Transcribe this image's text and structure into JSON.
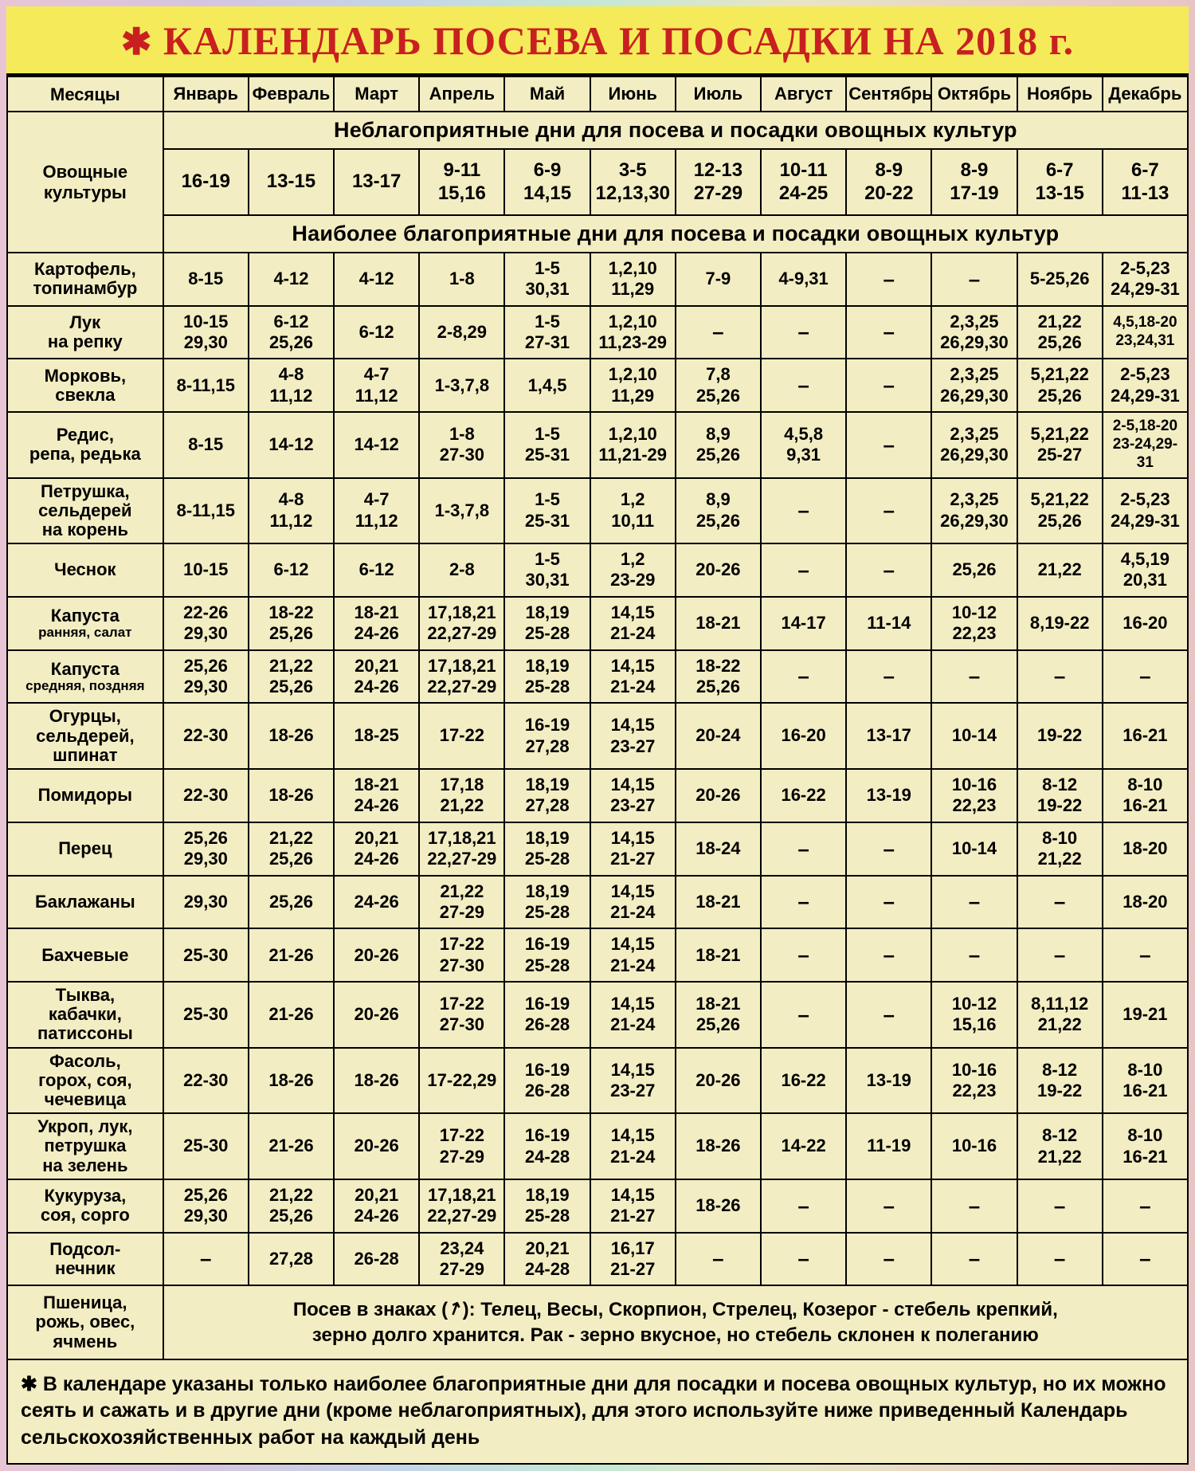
{
  "title": "КАЛЕНДАРЬ ПОСЕВА И ПОСАДКИ НА 2018 г.",
  "asterisk": "✱",
  "header_months_label": "Месяцы",
  "header_crops_label": "Овощные культуры",
  "months": [
    "Январь",
    "Февраль",
    "Март",
    "Апрель",
    "Май",
    "Июнь",
    "Июль",
    "Август",
    "Сентябрь",
    "Октябрь",
    "Ноябрь",
    "Декабрь"
  ],
  "section_unfavorable": "Неблагоприятные дни для посева и посадки овощных культур",
  "section_favorable": "Наиболее благоприятные дни для посева и посадки овощных культур",
  "unfavorable": [
    "16-19",
    "13-15",
    "13-17",
    "9-11\n15,16",
    "6-9\n14,15",
    "3-5\n12,13,30",
    "12-13\n27-29",
    "10-11\n24-25",
    "8-9\n20-22",
    "8-9\n17-19",
    "6-7\n13-15",
    "6-7\n11-13"
  ],
  "crops": [
    {
      "label": "Картофель,\nтопинамбур",
      "vals": [
        "8-15",
        "4-12",
        "4-12",
        "1-8",
        "1-5\n30,31",
        "1,2,10\n11,29",
        "7-9",
        "4-9,31",
        "–",
        "–",
        "5-25,26",
        "2-5,23\n24,29-31"
      ]
    },
    {
      "label": "Лук\nна репку",
      "vals": [
        "10-15\n29,30",
        "6-12\n25,26",
        "6-12",
        "2-8,29",
        "1-5\n27-31",
        "1,2,10\n11,23-29",
        "–",
        "–",
        "–",
        "2,3,25\n26,29,30",
        "21,22\n25,26",
        "4,5,18-20\n23,24,31"
      ]
    },
    {
      "label": "Морковь,\nсвекла",
      "vals": [
        "8-11,15",
        "4-8\n11,12",
        "4-7\n11,12",
        "1-3,7,8",
        "1,4,5",
        "1,2,10\n11,29",
        "7,8\n25,26",
        "–",
        "–",
        "2,3,25\n26,29,30",
        "5,21,22\n25,26",
        "2-5,23\n24,29-31"
      ]
    },
    {
      "label": "Редис,\nрепа, редька",
      "vals": [
        "8-15",
        "14-12",
        "14-12",
        "1-8\n27-30",
        "1-5\n25-31",
        "1,2,10\n11,21-29",
        "8,9\n25,26",
        "4,5,8\n9,31",
        "–",
        "2,3,25\n26,29,30",
        "5,21,22\n25-27",
        "2-5,18-20\n23-24,29-31"
      ]
    },
    {
      "label": "Петрушка,\nсельдерей\nна корень",
      "vals": [
        "8-11,15",
        "4-8\n11,12",
        "4-7\n11,12",
        "1-3,7,8",
        "1-5\n25-31",
        "1,2\n10,11",
        "8,9\n25,26",
        "–",
        "–",
        "2,3,25\n26,29,30",
        "5,21,22\n25,26",
        "2-5,23\n24,29-31"
      ]
    },
    {
      "label": "Чеснок",
      "vals": [
        "10-15",
        "6-12",
        "6-12",
        "2-8",
        "1-5\n30,31",
        "1,2\n23-29",
        "20-26",
        "–",
        "–",
        "25,26",
        "21,22",
        "4,5,19\n20,31"
      ]
    },
    {
      "label": "Капуста",
      "sub": "ранняя, салат",
      "vals": [
        "22-26\n29,30",
        "18-22\n25,26",
        "18-21\n24-26",
        "17,18,21\n22,27-29",
        "18,19\n25-28",
        "14,15\n21-24",
        "18-21",
        "14-17",
        "11-14",
        "10-12\n22,23",
        "8,19-22",
        "16-20"
      ]
    },
    {
      "label": "Капуста",
      "sub": "средняя, поздняя",
      "vals": [
        "25,26\n29,30",
        "21,22\n25,26",
        "20,21\n24-26",
        "17,18,21\n22,27-29",
        "18,19\n25-28",
        "14,15\n21-24",
        "18-22\n25,26",
        "–",
        "–",
        "–",
        "–",
        "–"
      ]
    },
    {
      "label": "Огурцы,\nсельдерей,\nшпинат",
      "vals": [
        "22-30",
        "18-26",
        "18-25",
        "17-22",
        "16-19\n27,28",
        "14,15\n23-27",
        "20-24",
        "16-20",
        "13-17",
        "10-14",
        "19-22",
        "16-21"
      ]
    },
    {
      "label": "Помидоры",
      "vals": [
        "22-30",
        "18-26",
        "18-21\n24-26",
        "17,18\n21,22",
        "18,19\n27,28",
        "14,15\n23-27",
        "20-26",
        "16-22",
        "13-19",
        "10-16\n22,23",
        "8-12\n19-22",
        "8-10\n16-21"
      ]
    },
    {
      "label": "Перец",
      "vals": [
        "25,26\n29,30",
        "21,22\n25,26",
        "20,21\n24-26",
        "17,18,21\n22,27-29",
        "18,19\n25-28",
        "14,15\n21-27",
        "18-24",
        "–",
        "–",
        "10-14",
        "8-10\n21,22",
        "18-20"
      ]
    },
    {
      "label": "Баклажаны",
      "vals": [
        "29,30",
        "25,26",
        "24-26",
        "21,22\n27-29",
        "18,19\n25-28",
        "14,15\n21-24",
        "18-21",
        "–",
        "–",
        "–",
        "–",
        "18-20"
      ]
    },
    {
      "label": "Бахчевые",
      "vals": [
        "25-30",
        "21-26",
        "20-26",
        "17-22\n27-30",
        "16-19\n25-28",
        "14,15\n21-24",
        "18-21",
        "–",
        "–",
        "–",
        "–",
        "–"
      ]
    },
    {
      "label": "Тыква,\nкабачки,\nпатиссоны",
      "vals": [
        "25-30",
        "21-26",
        "20-26",
        "17-22\n27-30",
        "16-19\n26-28",
        "14,15\n21-24",
        "18-21\n25,26",
        "–",
        "–",
        "10-12\n15,16",
        "8,11,12\n21,22",
        "19-21"
      ]
    },
    {
      "label": "Фасоль,\nгорох, соя,\nчечевица",
      "vals": [
        "22-30",
        "18-26",
        "18-26",
        "17-22,29",
        "16-19\n26-28",
        "14,15\n23-27",
        "20-26",
        "16-22",
        "13-19",
        "10-16\n22,23",
        "8-12\n19-22",
        "8-10\n16-21"
      ]
    },
    {
      "label": "Укроп, лук,\nпетрушка\nна зелень",
      "vals": [
        "25-30",
        "21-26",
        "20-26",
        "17-22\n27-29",
        "16-19\n24-28",
        "14,15\n21-24",
        "18-26",
        "14-22",
        "11-19",
        "10-16",
        "8-12\n21,22",
        "8-10\n16-21"
      ]
    },
    {
      "label": "Кукуруза,\nсоя, сорго",
      "vals": [
        "25,26\n29,30",
        "21,22\n25,26",
        "20,21\n24-26",
        "17,18,21\n22,27-29",
        "18,19\n25-28",
        "14,15\n21-27",
        "18-26",
        "–",
        "–",
        "–",
        "–",
        "–"
      ]
    },
    {
      "label": "Подсол-\nнечник",
      "vals": [
        "–",
        "27,28",
        "26-28",
        "23,24\n27-29",
        "20,21\n24-28",
        "16,17\n21-27",
        "–",
        "–",
        "–",
        "–",
        "–",
        "–"
      ]
    }
  ],
  "grains_label": "Пшеница,\nрожь, овес,\nячмень",
  "grains_note_line1": "Посев в знаках (",
  "grains_note_arrow": "↗",
  "grains_note_line1b": "): Телец, Весы, Скорпион, Стрелец, Козерог - стебель крепкий,",
  "grains_note_line2": "зерно долго хранится. Рак - зерно вкусное, но стебель склонен к полеганию",
  "footnote": "✱ В календаре указаны только наиболее благоприятные дни для посадки и посева овощных культур, но их можно сеять и сажать и в другие дни (кроме неблагоприятных), для этого используйте ниже приведенный Календарь сельскохозяйственных работ на каждый день",
  "colors": {
    "bg": "#f3edc3",
    "title_bg": "#f5eb5a",
    "title_fg": "#c82020",
    "border": "#000000"
  }
}
